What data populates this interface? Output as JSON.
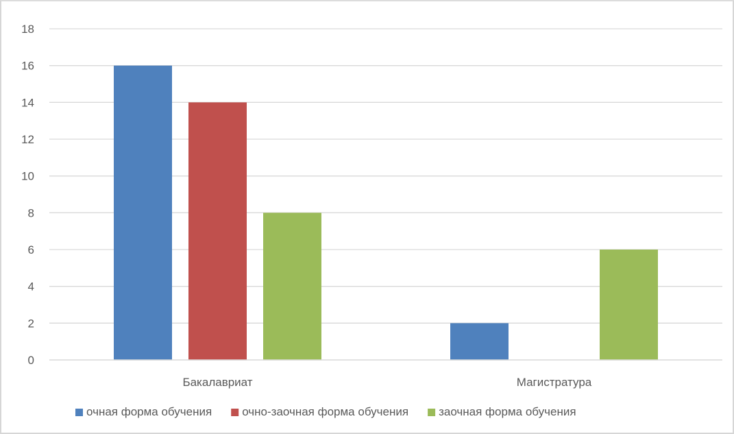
{
  "chart_data": {
    "type": "bar",
    "title": "",
    "xlabel": "",
    "ylabel": "",
    "categories": [
      "Бакалавриат",
      "Магистратура"
    ],
    "series": [
      {
        "name": "очная форма обучения",
        "values": [
          16,
          2
        ],
        "color": "#4f81bd"
      },
      {
        "name": "очно-заочная форма обучения",
        "values": [
          14,
          0
        ],
        "color": "#c0504d"
      },
      {
        "name": "заочная форма обучения",
        "values": [
          8,
          6
        ],
        "color": "#9bbb59"
      }
    ],
    "ylim": [
      0,
      18
    ],
    "yticks": [
      0,
      2,
      4,
      6,
      8,
      10,
      12,
      14,
      16,
      18
    ],
    "grid": true,
    "legend_position": "bottom"
  }
}
